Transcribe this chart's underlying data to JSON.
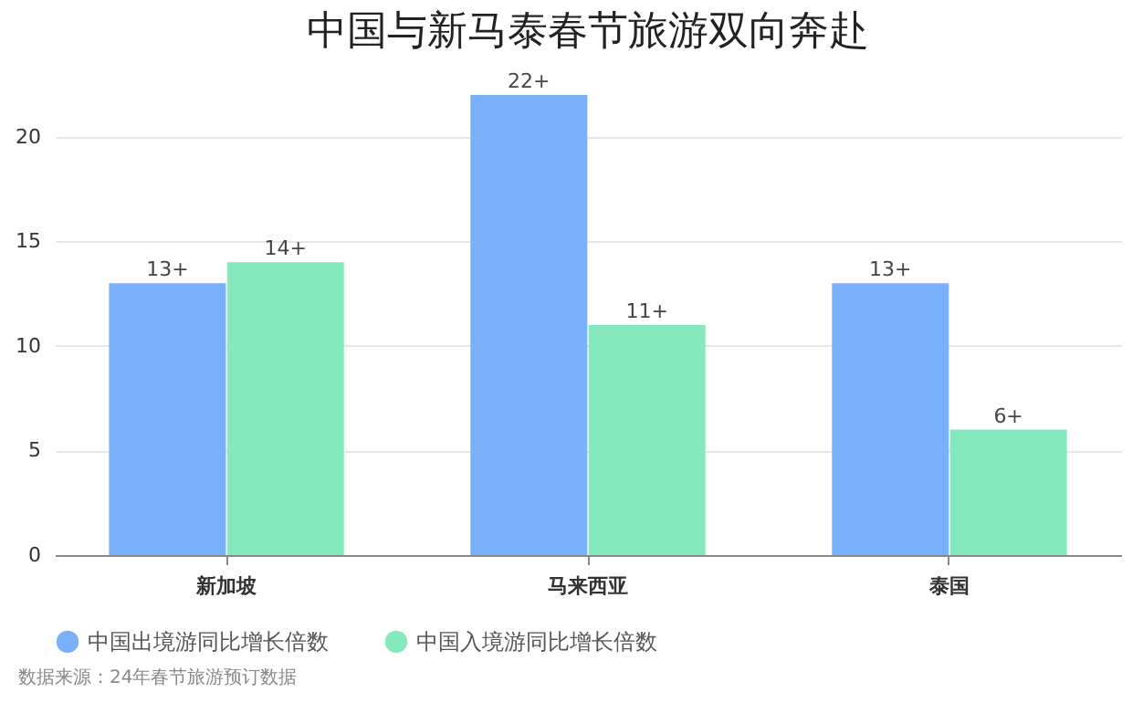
{
  "chart_data": {
    "type": "bar",
    "title": "中国与新马泰春节旅游双向奔赴",
    "categories": [
      "新加坡",
      "马来西亚",
      "泰国"
    ],
    "series": [
      {
        "name": "中国出境游同比增长倍数",
        "color": "#7aaff9",
        "values": [
          13,
          22,
          13
        ],
        "value_labels": [
          "13+",
          "22+",
          "13+"
        ]
      },
      {
        "name": "中国入境游同比增长倍数",
        "color": "#86e8bd",
        "values": [
          14,
          11,
          6
        ],
        "value_labels": [
          "14+",
          "11+",
          "6+"
        ]
      }
    ],
    "ylim": [
      0,
      22
    ],
    "yticks": [
      0,
      5,
      10,
      15,
      20
    ],
    "grid": "y",
    "legend": "bottom",
    "annotations": [
      "数据来源：24年春节旅游预订数据"
    ]
  }
}
